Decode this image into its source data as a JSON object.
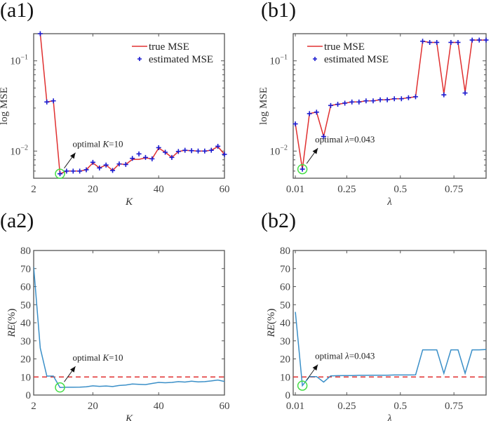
{
  "panels": {
    "a1": "(a1)",
    "b1": "(b1)",
    "a2": "(a2)",
    "b2": "(b2)"
  },
  "colors": {
    "true_mse": "#e03030",
    "estimated_mse": "#1a1ad0",
    "re_line": "#3a8fc8",
    "threshold": "#e03030",
    "optimal_circle": "#44dd44",
    "axis": "#555555"
  },
  "chart_data": [
    {
      "id": "a1",
      "type": "line",
      "title": "",
      "xlabel": "K",
      "ylabel": "log MSE",
      "yscale": "log",
      "xlim": [
        2,
        60
      ],
      "ylim": [
        0.005,
        0.2
      ],
      "xticks": [
        2,
        20,
        40,
        60
      ],
      "xtick_labels": [
        "2",
        "20",
        "40",
        "60"
      ],
      "yticks": [
        0.1,
        0.01
      ],
      "ytick_labels": [
        "10⁻¹",
        "10⁻²"
      ],
      "legend": {
        "position": "top-right",
        "entries": [
          "true MSE",
          "estimated MSE"
        ]
      },
      "x": [
        4,
        6,
        8,
        10,
        12,
        14,
        16,
        18,
        20,
        22,
        24,
        26,
        28,
        30,
        32,
        34,
        36,
        38,
        40,
        42,
        44,
        46,
        48,
        50,
        52,
        54,
        56,
        58,
        60
      ],
      "series": [
        {
          "name": "true MSE",
          "values": [
            0.2,
            0.035,
            0.036,
            0.0056,
            0.006,
            0.006,
            0.006,
            0.0062,
            0.0074,
            0.0065,
            0.007,
            0.0061,
            0.0072,
            0.0071,
            0.0081,
            0.0081,
            0.0084,
            0.0082,
            0.0108,
            0.0097,
            0.0085,
            0.0099,
            0.0102,
            0.0101,
            0.01,
            0.01,
            0.0102,
            0.0112,
            0.0092
          ]
        },
        {
          "name": "estimated MSE",
          "values": [
            0.2,
            0.035,
            0.036,
            0.0056,
            0.006,
            0.006,
            0.006,
            0.0062,
            0.0075,
            0.0065,
            0.007,
            0.0061,
            0.0072,
            0.0071,
            0.0083,
            0.0093,
            0.0085,
            0.0082,
            0.0109,
            0.0097,
            0.0085,
            0.0099,
            0.0102,
            0.0101,
            0.01,
            0.01,
            0.0102,
            0.0113,
            0.0092
          ]
        }
      ],
      "annotation": {
        "text_prefix": "optimal ",
        "var": "K",
        "text_suffix": "=10",
        "x": 10,
        "y": 0.0056
      }
    },
    {
      "id": "b1",
      "type": "line",
      "title": "",
      "xlabel": "λ",
      "ylabel": "log MSE",
      "yscale": "log",
      "xlim": [
        0,
        0.9
      ],
      "ylim": [
        0.005,
        0.2
      ],
      "xticks": [
        0.01,
        0.25,
        0.5,
        0.75
      ],
      "xtick_labels": [
        "0.01",
        "0.25",
        "0.5",
        "0.75"
      ],
      "yticks": [
        0.1,
        0.01
      ],
      "ytick_labels": [
        "10⁻¹",
        "10⁻²"
      ],
      "legend": {
        "position": "top-left",
        "entries": [
          "true MSE",
          "estimated MSE"
        ]
      },
      "x": [
        0.01,
        0.043,
        0.076,
        0.109,
        0.142,
        0.175,
        0.208,
        0.241,
        0.274,
        0.307,
        0.34,
        0.373,
        0.406,
        0.439,
        0.472,
        0.505,
        0.538,
        0.571,
        0.604,
        0.637,
        0.67,
        0.703,
        0.736,
        0.769,
        0.802,
        0.835,
        0.868,
        0.9
      ],
      "series": [
        {
          "name": "true MSE",
          "values": [
            0.02,
            0.0063,
            0.026,
            0.027,
            0.0145,
            0.032,
            0.033,
            0.034,
            0.035,
            0.035,
            0.036,
            0.036,
            0.037,
            0.037,
            0.038,
            0.038,
            0.039,
            0.04,
            0.165,
            0.16,
            0.16,
            0.043,
            0.16,
            0.16,
            0.045,
            0.17,
            0.17,
            0.17
          ]
        },
        {
          "name": "estimated MSE",
          "values": [
            0.02,
            0.0063,
            0.026,
            0.027,
            0.0145,
            0.032,
            0.033,
            0.034,
            0.035,
            0.035,
            0.036,
            0.036,
            0.037,
            0.037,
            0.038,
            0.038,
            0.039,
            0.04,
            0.165,
            0.16,
            0.16,
            0.042,
            0.16,
            0.16,
            0.044,
            0.17,
            0.17,
            0.17
          ]
        }
      ],
      "annotation": {
        "text_prefix": "optimal ",
        "var": "λ",
        "text_suffix": "=0.043",
        "x": 0.043,
        "y": 0.0063
      }
    },
    {
      "id": "a2",
      "type": "line",
      "title": "",
      "xlabel": "K",
      "ylabel": "RE(%)",
      "xlim": [
        2,
        60
      ],
      "ylim": [
        0,
        80
      ],
      "xticks": [
        2,
        20,
        40,
        60
      ],
      "xtick_labels": [
        "2",
        "20",
        "40",
        "60"
      ],
      "yticks": [
        0,
        10,
        20,
        30,
        40,
        50,
        60,
        70,
        80
      ],
      "ytick_labels": [
        "0",
        "10",
        "20",
        "30",
        "40",
        "50",
        "60",
        "70",
        "80"
      ],
      "threshold": 10,
      "x": [
        2,
        4,
        6,
        8,
        10,
        12,
        14,
        16,
        18,
        20,
        22,
        24,
        26,
        28,
        30,
        32,
        34,
        36,
        38,
        40,
        42,
        44,
        46,
        48,
        50,
        52,
        54,
        56,
        58,
        60
      ],
      "series": [
        {
          "name": "RE",
          "values": [
            71,
            26,
            10.5,
            10.5,
            4.2,
            4.3,
            4.3,
            4.4,
            4.6,
            5.1,
            4.8,
            5.0,
            4.7,
            5.3,
            5.5,
            6.1,
            5.9,
            5.8,
            6.4,
            7.0,
            6.8,
            7.0,
            7.4,
            7.2,
            7.7,
            7.3,
            7.4,
            7.8,
            8.3,
            7.5
          ]
        }
      ],
      "annotation": {
        "text_prefix": "optimal ",
        "var": "K",
        "text_suffix": "=10",
        "x": 10,
        "y": 4.2
      }
    },
    {
      "id": "b2",
      "type": "line",
      "title": "",
      "xlabel": "λ",
      "ylabel": "RE(%)",
      "xlim": [
        0,
        0.9
      ],
      "ylim": [
        0,
        80
      ],
      "xticks": [
        0.01,
        0.25,
        0.5,
        0.75
      ],
      "xtick_labels": [
        "0.01",
        "0.25",
        "0.5",
        "0.75"
      ],
      "yticks": [
        0,
        10,
        20,
        30,
        40,
        50,
        60,
        70,
        80
      ],
      "ytick_labels": [
        "0",
        "10",
        "20",
        "30",
        "40",
        "50",
        "60",
        "70",
        "80"
      ],
      "threshold": 10,
      "x": [
        0.01,
        0.043,
        0.076,
        0.109,
        0.142,
        0.175,
        0.208,
        0.241,
        0.274,
        0.307,
        0.34,
        0.373,
        0.406,
        0.439,
        0.472,
        0.505,
        0.538,
        0.571,
        0.604,
        0.637,
        0.67,
        0.703,
        0.736,
        0.769,
        0.802,
        0.835,
        0.868,
        0.9
      ],
      "series": [
        {
          "name": "RE",
          "values": [
            46,
            5.2,
            10.2,
            10.2,
            7.2,
            10.6,
            10.7,
            10.8,
            10.8,
            10.9,
            10.9,
            11.0,
            11.0,
            11.0,
            11.1,
            11.1,
            11.1,
            11.2,
            25,
            25,
            25,
            12,
            25,
            25,
            12,
            25,
            25,
            25.2
          ]
        }
      ],
      "annotation": {
        "text_prefix": "optimal ",
        "var": "λ",
        "text_suffix": "=0.043",
        "x": 0.043,
        "y": 5.2
      }
    }
  ]
}
